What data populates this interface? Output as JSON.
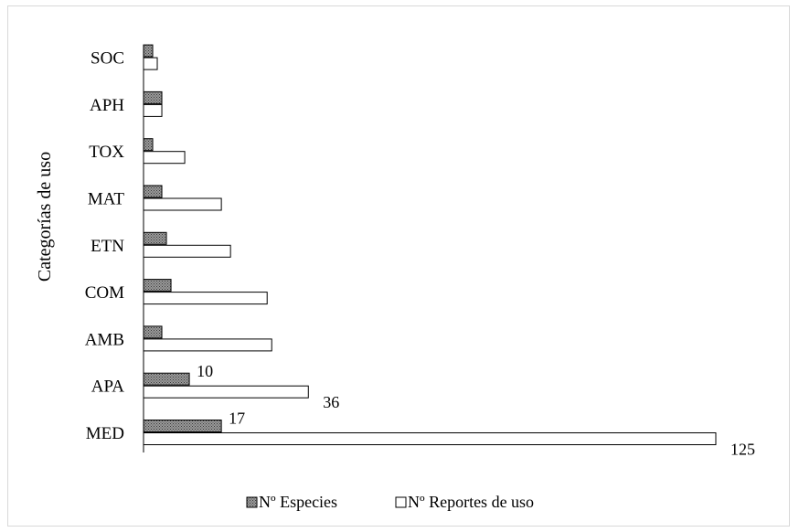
{
  "chart_data": {
    "type": "bar",
    "orientation": "horizontal",
    "title": "",
    "xlabel": "",
    "ylabel": "Categorías de uso",
    "categories": [
      "MED",
      "APA",
      "AMB",
      "COM",
      "ETN",
      "MAT",
      "TOX",
      "APH",
      "SOC"
    ],
    "series": [
      {
        "name": "Nº Especies",
        "values": [
          17,
          10,
          4,
          6,
          5,
          4,
          2,
          4,
          2
        ],
        "data_labels": [
          "17",
          "10",
          "",
          "",
          "",
          "",
          "",
          "",
          ""
        ],
        "fill": "hatched-gray"
      },
      {
        "name": "Nº Reportes de uso",
        "values": [
          125,
          36,
          28,
          27,
          19,
          17,
          9,
          4,
          3
        ],
        "data_labels": [
          "125",
          "36",
          "",
          "",
          "",
          "",
          "",
          "",
          ""
        ],
        "fill": "white"
      }
    ],
    "xlim": [
      0,
      125
    ],
    "grid": false,
    "legend_position": "bottom",
    "colors": {
      "outline": "#000000",
      "hatch": "#555555",
      "hatch_bg": "#9a9a9a",
      "background": "#ffffff",
      "border": "#d9d9d9"
    }
  }
}
